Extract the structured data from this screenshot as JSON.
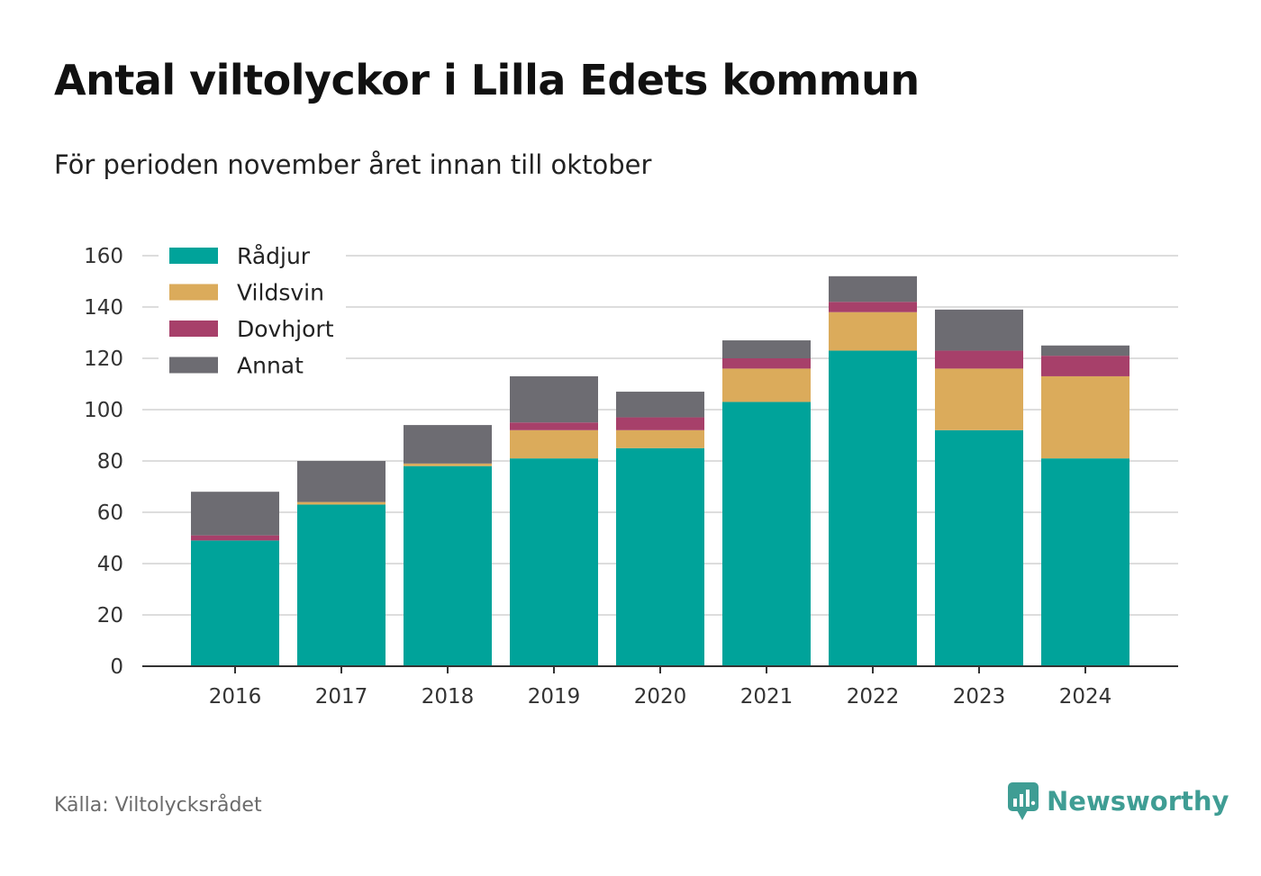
{
  "header": {
    "title": "Antal viltolyckor i Lilla Edets kommun",
    "subtitle": "För perioden november året innan till oktober"
  },
  "footer": {
    "source": "Källa: Viltolycksrådet",
    "brand": "Newsworthy",
    "brand_icon": "bar-chart-speech-bubble-icon"
  },
  "colors": {
    "Rådjur": "#00a39a",
    "Vildsvin": "#dbab5b",
    "Dovhjort": "#a7406a",
    "Annat": "#6d6c72",
    "brand": "#3f9d94",
    "grid": "#dddddd",
    "axis": "#333333"
  },
  "chart_data": {
    "type": "bar",
    "stacked": true,
    "title": "Antal viltolyckor i Lilla Edets kommun",
    "subtitle": "För perioden november året innan till oktober",
    "xlabel": "",
    "ylabel": "",
    "categories": [
      "2016",
      "2017",
      "2018",
      "2019",
      "2020",
      "2021",
      "2022",
      "2023",
      "2024"
    ],
    "ylim": [
      0,
      160
    ],
    "yticks": [
      0,
      20,
      40,
      60,
      80,
      100,
      120,
      140,
      160
    ],
    "grid": true,
    "legend_position": "top-left",
    "series": [
      {
        "name": "Rådjur",
        "values": [
          49,
          63,
          78,
          81,
          85,
          103,
          123,
          92,
          81
        ]
      },
      {
        "name": "Vildsvin",
        "values": [
          0,
          1,
          1,
          11,
          7,
          13,
          15,
          24,
          32
        ]
      },
      {
        "name": "Dovhjort",
        "values": [
          2,
          0,
          0,
          3,
          5,
          4,
          4,
          7,
          8
        ]
      },
      {
        "name": "Annat",
        "values": [
          17,
          16,
          15,
          18,
          10,
          7,
          10,
          16,
          4
        ]
      }
    ]
  }
}
